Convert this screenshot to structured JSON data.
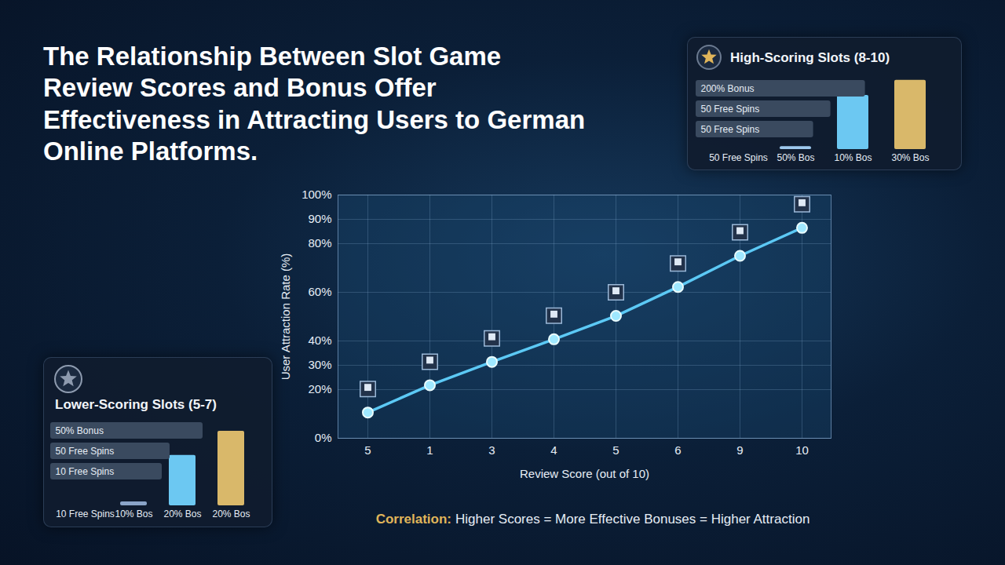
{
  "chart_data": [
    {
      "type": "line",
      "title": "The Relationship Between Slot Game Review Scores and Bonus Offer Effectiveness in Attracting Users to German Online Platforms.",
      "x_label": "Review Score (out of 10)",
      "y_label": "User Attraction Rate (%)",
      "categories": [
        "5",
        "1",
        "3",
        "4",
        "5",
        "6",
        "9",
        "10"
      ],
      "values": [
        10.6,
        21.8,
        31.4,
        40.7,
        50.3,
        62.2,
        75,
        86.5
      ],
      "color": "#5cc9f5",
      "marker": "circle",
      "line_style": "solid",
      "ylim": [
        0,
        100
      ],
      "yticks": [
        {
          "value": 0,
          "label": "0%"
        },
        {
          "value": 20,
          "label": "20%"
        },
        {
          "value": 30,
          "label": "30%"
        },
        {
          "value": 40,
          "label": "40%"
        },
        {
          "value": 60,
          "label": "60%"
        },
        {
          "value": 80,
          "label": "80%"
        },
        {
          "value": 90,
          "label": "90%"
        },
        {
          "value": 100,
          "label": "100%"
        }
      ],
      "grid": true,
      "annotation": {
        "label": "Correlation:",
        "text": "Higher Scores = More Effective Bonuses = Higher Attraction"
      }
    },
    {
      "type": "bar",
      "title": "Lower-Scoring Slots (5-7)",
      "bars": [
        {
          "orientation": "horizontal",
          "categories": [
            "50% Bonus",
            "50 Free Spins",
            "10 Free Spins"
          ],
          "values": [
            97,
            76,
            71
          ],
          "color": "#3a4a5f",
          "xlim": [
            0,
            100
          ],
          "tick_labels": false
        },
        {
          "categories": [
            "10 Free Spins",
            "10% Bos",
            "20% Bos",
            "20% Bos"
          ],
          "values": [
            0,
            5,
            65,
            96
          ],
          "colors": [
            "#6b7a90",
            "#8aa4c8",
            "#6cc8f2",
            "#d9b86a"
          ],
          "ylim": [
            0,
            100
          ],
          "tick_labels": "x"
        }
      ]
    },
    {
      "type": "bar",
      "title": "High-Scoring Slots (8-10)",
      "bars": [
        {
          "orientation": "horizontal",
          "categories": [
            "200% Bonus",
            "50 Free Spins",
            "50 Free Spins"
          ],
          "values": [
            98,
            78,
            68
          ],
          "color": "#3a4a5f",
          "xlim": [
            0,
            100
          ],
          "tick_labels": false
        },
        {
          "categories": [
            "50 Free Spins",
            "50% Bos",
            "10% Bos",
            "30% Bos"
          ],
          "values": [
            0,
            4,
            75,
            96
          ],
          "colors": [
            "#6b7a90",
            "#9ec9ee",
            "#6cc8f2",
            "#d9b86a"
          ],
          "ylim": [
            0,
            100
          ],
          "tick_labels": "x"
        }
      ]
    }
  ]
}
